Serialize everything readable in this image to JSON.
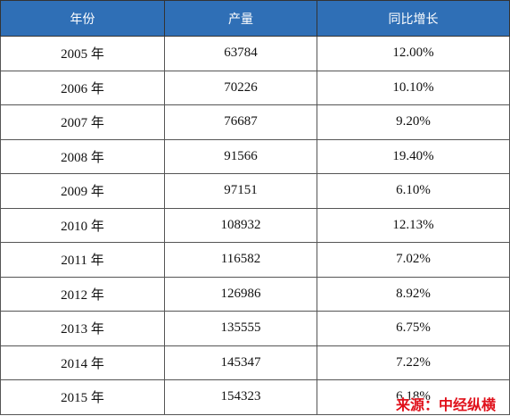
{
  "table": {
    "header": [
      "年份",
      "产量",
      "同比增长"
    ],
    "rows": [
      [
        "2005 年",
        "63784",
        "12.00%"
      ],
      [
        "2006 年",
        "70226",
        "10.10%"
      ],
      [
        "2007 年",
        "76687",
        "9.20%"
      ],
      [
        "2008 年",
        "91566",
        "19.40%"
      ],
      [
        "2009 年",
        "97151",
        "6.10%"
      ],
      [
        "2010 年",
        "108932",
        "12.13%"
      ],
      [
        "2011 年",
        "116582",
        "7.02%"
      ],
      [
        "2012 年",
        "126986",
        "8.92%"
      ],
      [
        "2013 年",
        "135555",
        "6.75%"
      ],
      [
        "2014 年",
        "145347",
        "7.22%"
      ],
      [
        "2015 年",
        "154323",
        "6.18%"
      ]
    ]
  },
  "watermark": "来源：中经纵横"
}
